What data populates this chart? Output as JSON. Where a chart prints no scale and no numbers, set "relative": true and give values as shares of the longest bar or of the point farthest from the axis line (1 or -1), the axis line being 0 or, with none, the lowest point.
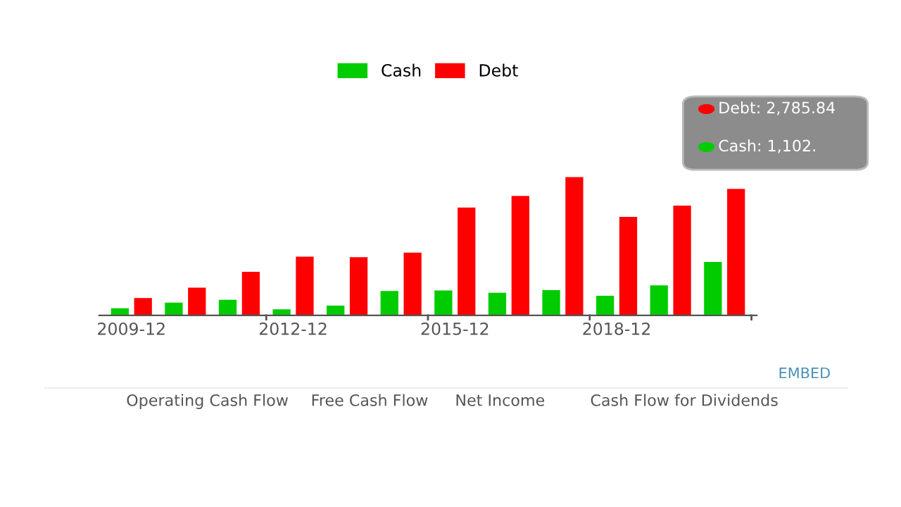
{
  "chart_data": {
    "type": "bar",
    "relative": true,
    "legend": "top",
    "grid": false,
    "categories": [
      "2009-12",
      null,
      null,
      "2012-12",
      null,
      null,
      "2015-12",
      null,
      null,
      "2018-12",
      null,
      null
    ],
    "series": [
      {
        "name": "Cash",
        "color": "#00cc00",
        "values": [
          0.051,
          0.092,
          0.112,
          0.044,
          0.071,
          0.176,
          0.18,
          0.163,
          0.183,
          0.142,
          0.217,
          0.386
        ]
      },
      {
        "name": "Debt",
        "color": "#ff0000",
        "values": [
          0.125,
          0.2,
          0.315,
          0.424,
          0.42,
          0.454,
          0.78,
          0.864,
          1,
          0.712,
          0.793,
          0.915
        ]
      }
    ],
    "annotations": [
      "Debt: 2,785.84",
      "Cash: 1,102.",
      "EMBED",
      "Operating Cash Flow",
      "Free Cash Flow",
      "Net Income",
      "Cash Flow for Dividends"
    ]
  }
}
